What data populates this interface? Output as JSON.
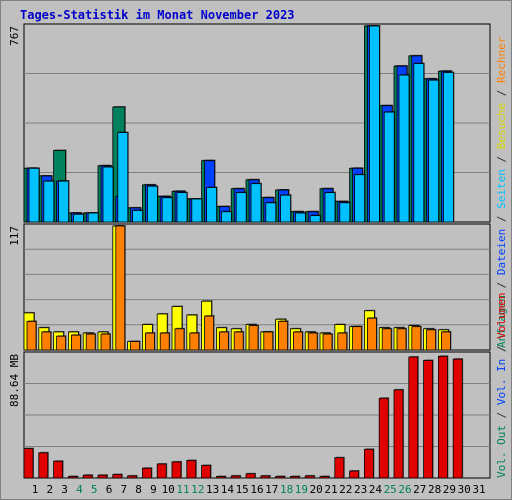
{
  "title": "Tages-Statistik im Monat November 2023",
  "legend_right": {
    "top": [
      {
        "text": "Anfragen",
        "color": "#00805c"
      },
      {
        "text": " / ",
        "color": "#333333"
      },
      {
        "text": "Dateien",
        "color": "#0040ff"
      },
      {
        "text": " / ",
        "color": "#333333"
      },
      {
        "text": "Seiten",
        "color": "#00c0ff"
      },
      {
        "text": " / ",
        "color": "#333333"
      },
      {
        "text": "Besuche",
        "color": "#d8d800"
      },
      {
        "text": " / ",
        "color": "#333333"
      },
      {
        "text": "Rechner",
        "color": "#ff8000"
      }
    ],
    "bottom": [
      {
        "text": "Vol. Out",
        "color": "#00805c"
      },
      {
        "text": " / ",
        "color": "#333333"
      },
      {
        "text": "Vol. In",
        "color": "#0040ff"
      },
      {
        "text": " / ",
        "color": "#333333"
      },
      {
        "text": "Volumen",
        "color": "#e00000"
      }
    ]
  },
  "chart_data": [
    {
      "type": "bar",
      "panel": "requests",
      "ymax_label": "767",
      "ylim": [
        0,
        767
      ],
      "categories": [
        "1",
        "2",
        "3",
        "4",
        "5",
        "6",
        "7",
        "8",
        "9",
        "10",
        "11",
        "12",
        "13",
        "14",
        "15",
        "16",
        "17",
        "18",
        "19",
        "20",
        "21",
        "22",
        "23",
        "24",
        "25",
        "26",
        "27",
        "28",
        "29",
        "30",
        "31"
      ],
      "series": [
        {
          "name": "Anfragen",
          "color": "#00805c",
          "values": [
            210,
            180,
            280,
            35,
            35,
            220,
            450,
            55,
            145,
            100,
            120,
            90,
            240,
            60,
            130,
            165,
            95,
            125,
            40,
            40,
            130,
            80,
            210,
            767,
            455,
            610,
            650,
            560,
            590,
            null,
            null
          ]
        },
        {
          "name": "Dateien",
          "color": "#0040ff",
          "values": [
            210,
            180,
            160,
            35,
            35,
            220,
            100,
            55,
            145,
            100,
            120,
            90,
            240,
            60,
            130,
            165,
            95,
            125,
            40,
            40,
            130,
            80,
            210,
            767,
            455,
            610,
            650,
            560,
            590,
            null,
            null
          ]
        },
        {
          "name": "Seiten",
          "color": "#00c0ff",
          "values": [
            210,
            160,
            160,
            30,
            35,
            215,
            350,
            45,
            140,
            95,
            115,
            90,
            135,
            40,
            115,
            150,
            75,
            105,
            35,
            25,
            115,
            75,
            185,
            767,
            430,
            575,
            620,
            555,
            585,
            null,
            null
          ]
        }
      ]
    },
    {
      "type": "bar",
      "panel": "visits",
      "ymax_label": "117",
      "ylim": [
        0,
        117
      ],
      "categories": [
        "1",
        "2",
        "3",
        "4",
        "5",
        "6",
        "7",
        "8",
        "9",
        "10",
        "11",
        "12",
        "13",
        "14",
        "15",
        "16",
        "17",
        "18",
        "19",
        "20",
        "21",
        "22",
        "23",
        "24",
        "25",
        "26",
        "27",
        "28",
        "29",
        "30",
        "31"
      ],
      "series": [
        {
          "name": "Besuche",
          "color": "#ffff00",
          "values": [
            35,
            21,
            17,
            17,
            16,
            17,
            117,
            8,
            24,
            34,
            41,
            33,
            46,
            21,
            20,
            24,
            17,
            29,
            20,
            17,
            16,
            24,
            22,
            37,
            21,
            21,
            23,
            20,
            19,
            null,
            null
          ]
        },
        {
          "name": "Rechner",
          "color": "#ff8000",
          "values": [
            27,
            17,
            13,
            14,
            15,
            15,
            117,
            8,
            16,
            16,
            20,
            16,
            32,
            17,
            17,
            23,
            17,
            27,
            17,
            16,
            15,
            16,
            22,
            30,
            20,
            20,
            22,
            19,
            17,
            null,
            null
          ]
        }
      ]
    },
    {
      "type": "bar",
      "panel": "volume",
      "ymax_label": "88.64 MB",
      "ylim": [
        0,
        88.64
      ],
      "categories": [
        "1",
        "2",
        "3",
        "4",
        "5",
        "6",
        "7",
        "8",
        "9",
        "10",
        "11",
        "12",
        "13",
        "14",
        "15",
        "16",
        "17",
        "18",
        "19",
        "20",
        "21",
        "22",
        "23",
        "24",
        "25",
        "26",
        "27",
        "28",
        "29",
        "30",
        "31"
      ],
      "series": [
        {
          "name": "Volumen",
          "color": "#e00000",
          "values": [
            21,
            18,
            12,
            1,
            2,
            2,
            2.5,
            1.5,
            7,
            10,
            11.5,
            12.5,
            9,
            1,
            1.5,
            3,
            1.5,
            1,
            1,
            1.5,
            1,
            14.5,
            5,
            20.5,
            57,
            63,
            86.5,
            84,
            87,
            85,
            null
          ]
        }
      ]
    }
  ],
  "x_axis": {
    "labels": [
      "1",
      "2",
      "3",
      "4",
      "5",
      "6",
      "7",
      "8",
      "9",
      "10",
      "11",
      "12",
      "13",
      "14",
      "15",
      "16",
      "17",
      "18",
      "19",
      "20",
      "21",
      "22",
      "23",
      "24",
      "25",
      "26",
      "27",
      "28",
      "29",
      "30",
      "31"
    ],
    "weekend_days": [
      4,
      5,
      11,
      12,
      18,
      19,
      25,
      26
    ],
    "weekday_color": "#000000",
    "weekend_color": "#00805c"
  }
}
